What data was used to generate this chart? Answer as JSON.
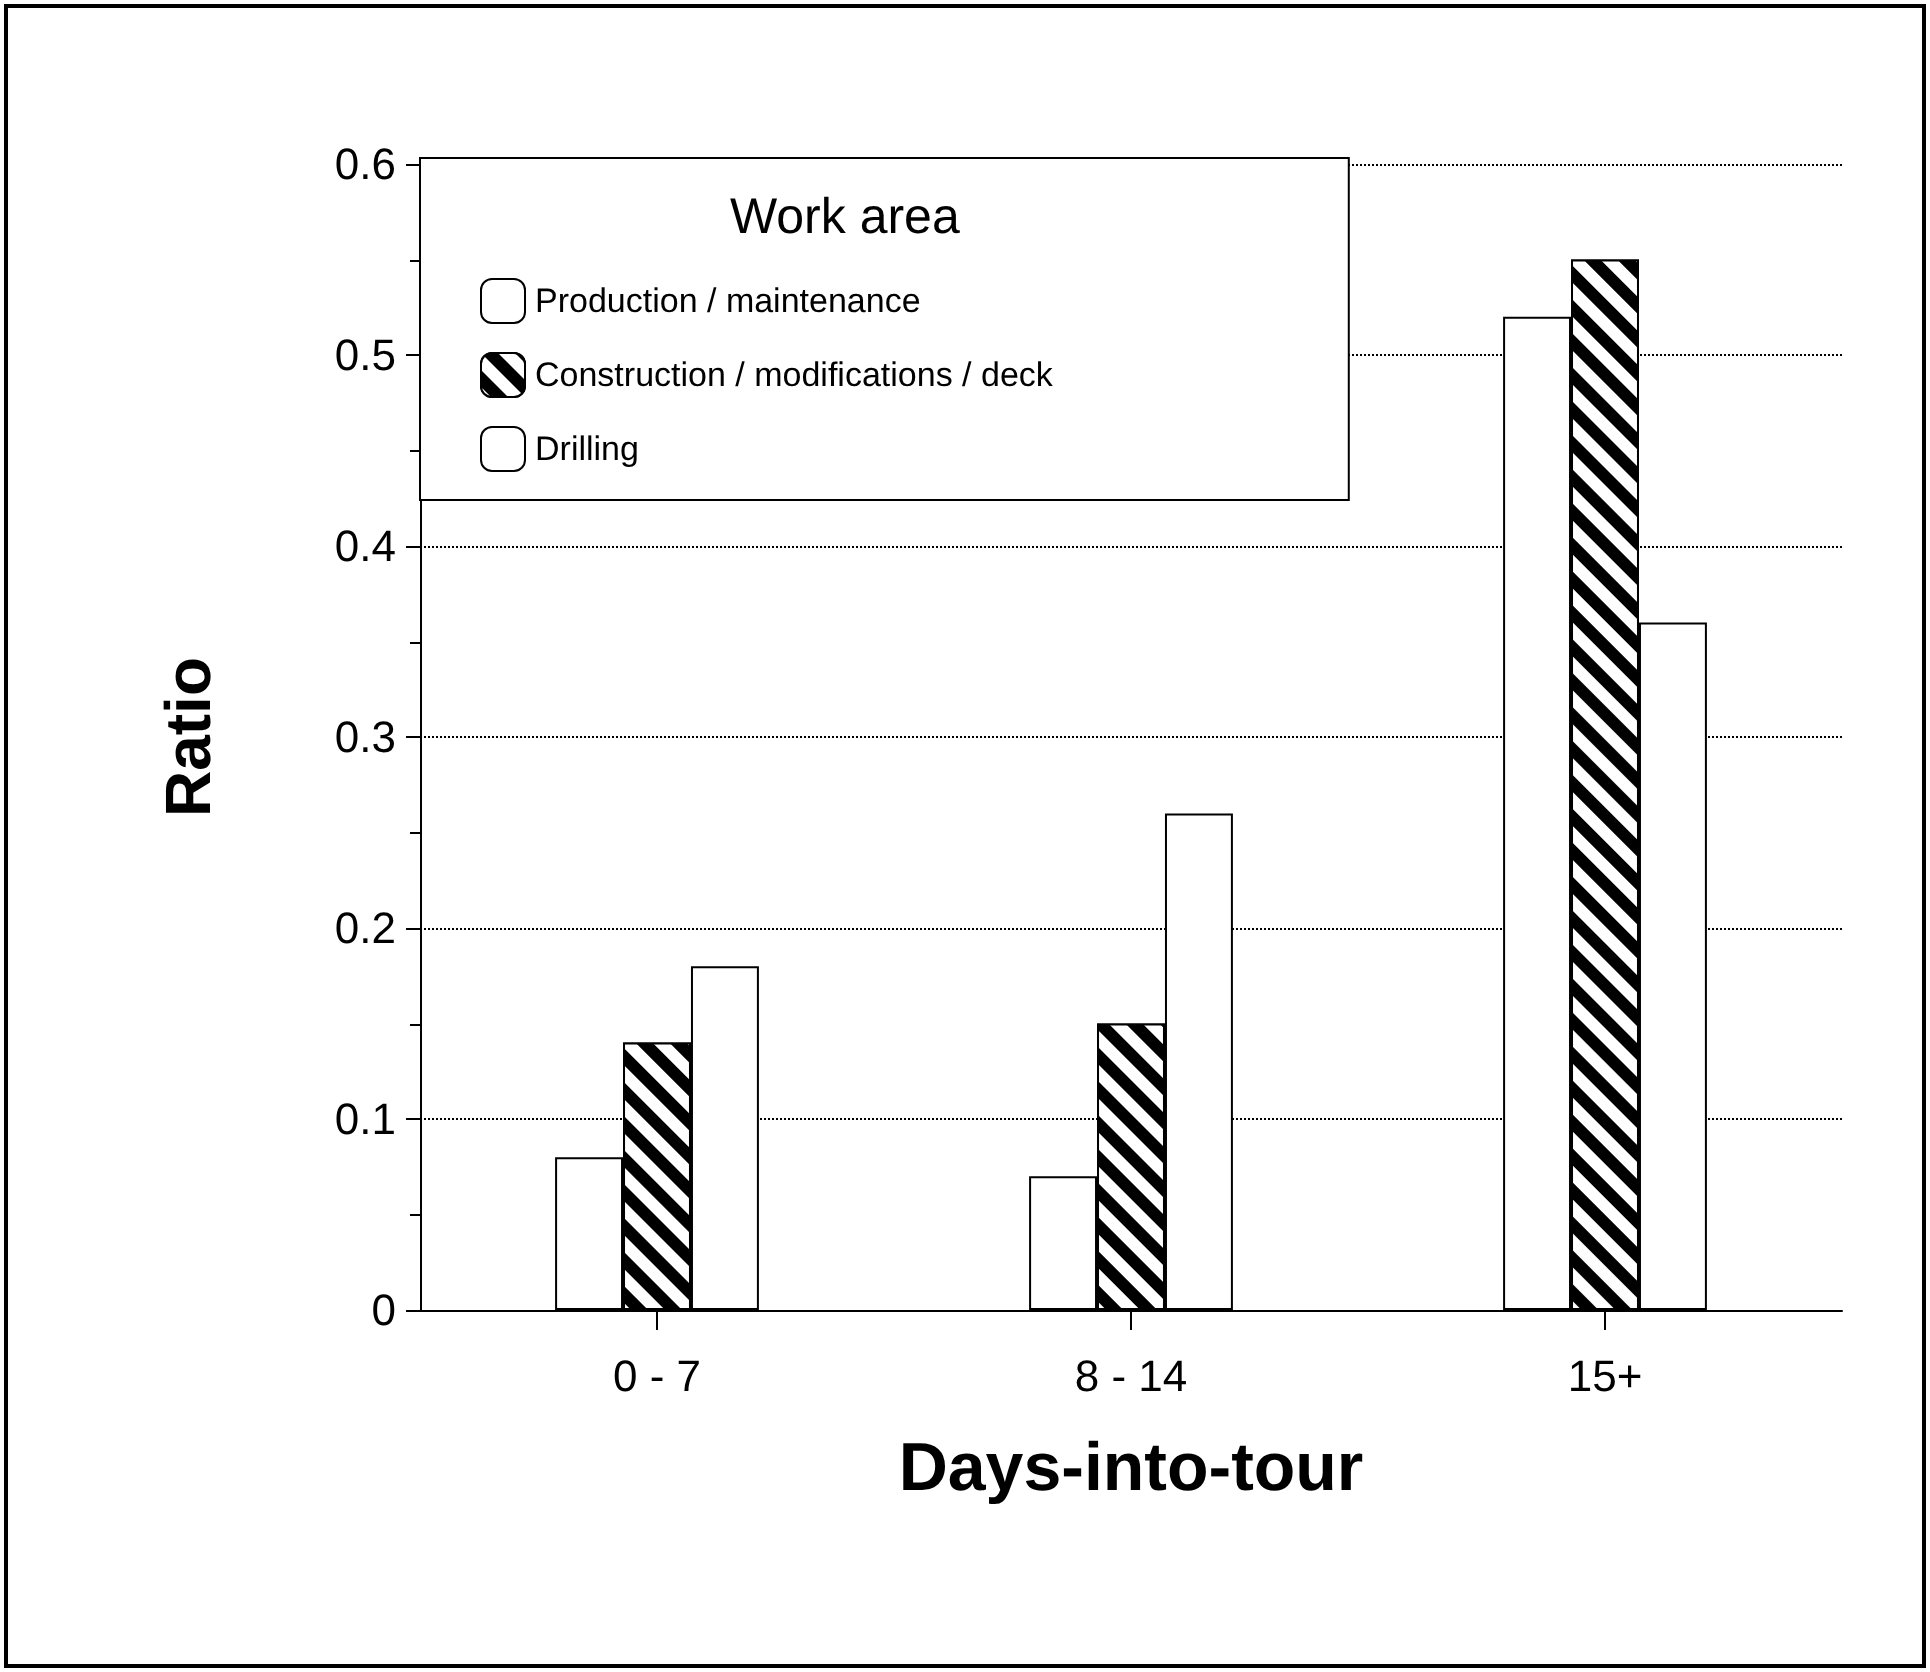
{
  "chart_data": {
    "type": "bar",
    "xlabel": "Days-into-tour",
    "ylabel": "Ratio",
    "legend_title": "Work area",
    "categories": [
      "0 - 7",
      "8 - 14",
      "15+"
    ],
    "series": [
      {
        "name": "Production / maintenance",
        "color": "#ffffff",
        "values": [
          0.08,
          0.07,
          0.52
        ]
      },
      {
        "name": "Construction / modifications / deck",
        "color": "#000000",
        "values": [
          0.14,
          0.15,
          0.55
        ]
      },
      {
        "name": "Drilling",
        "color": "#ffffff",
        "values": [
          0.18,
          0.26,
          0.36
        ]
      }
    ],
    "ylim": [
      0,
      0.6
    ],
    "yticks": [
      0,
      0.1,
      0.2,
      0.3,
      0.4,
      0.5,
      0.6
    ],
    "grid": "y",
    "legend": "top left"
  }
}
